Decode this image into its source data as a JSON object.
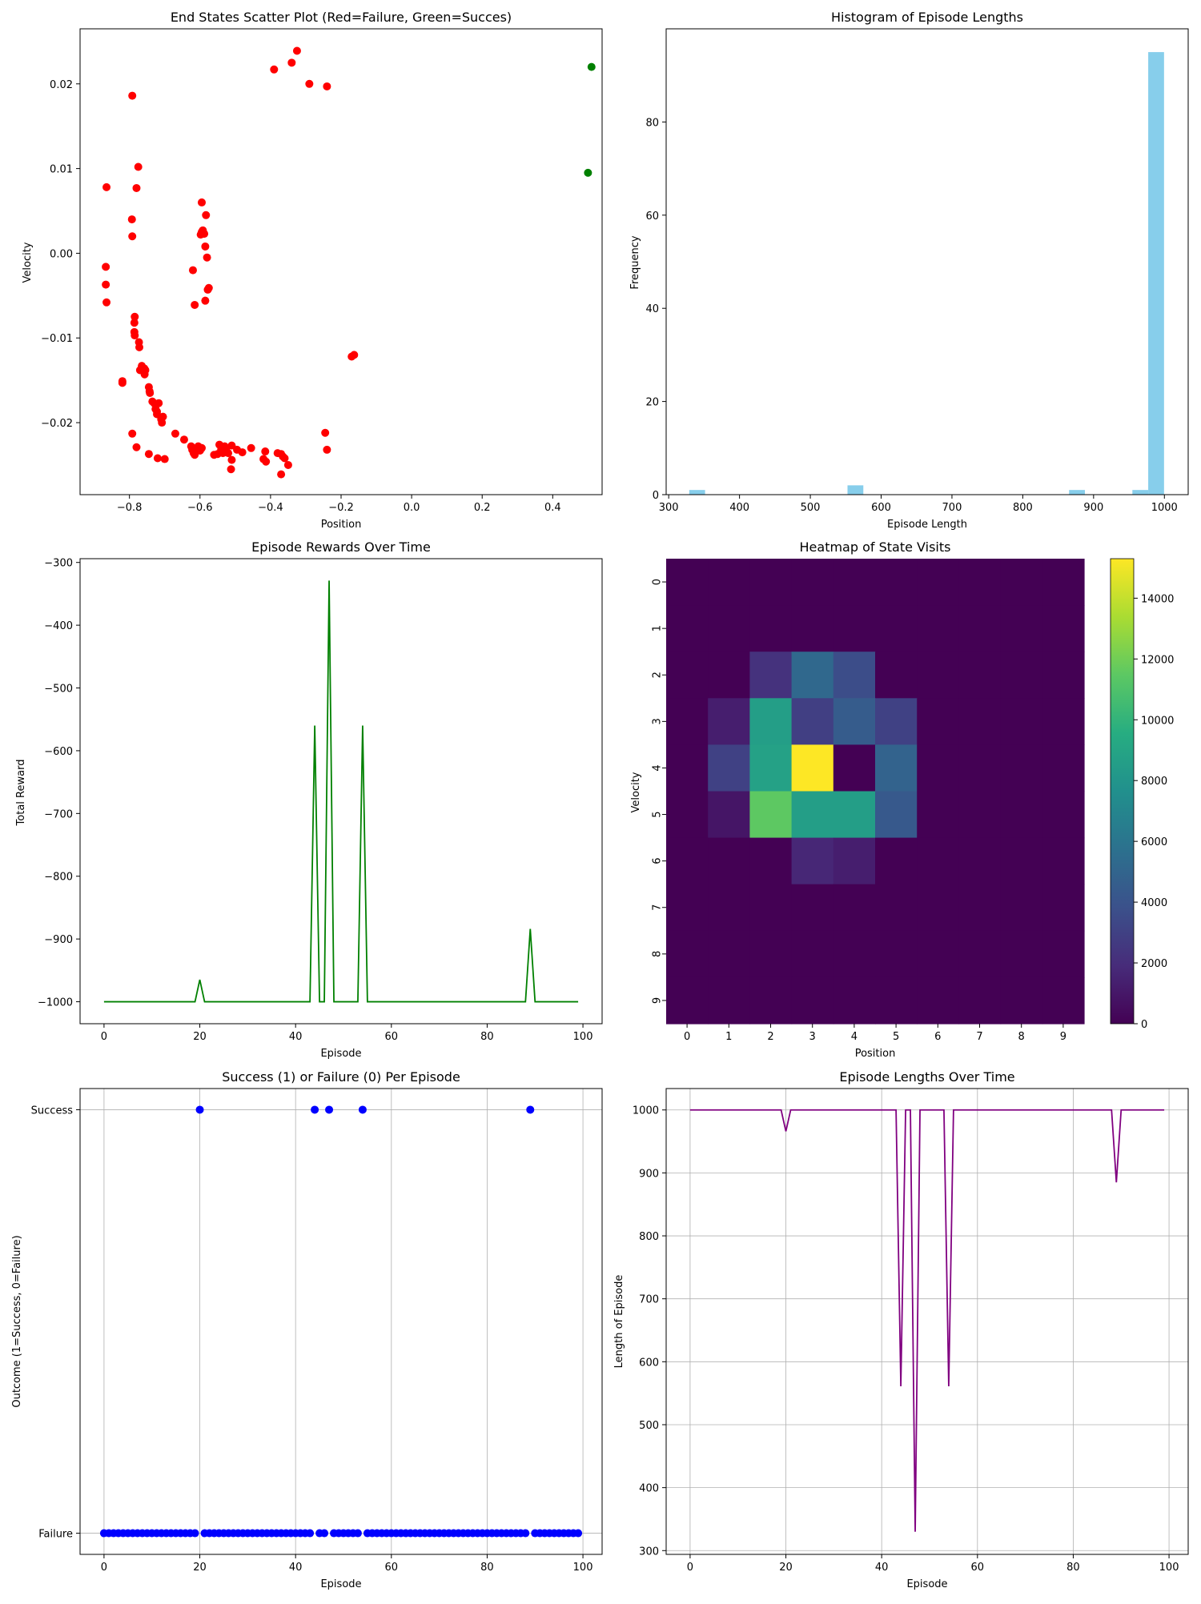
{
  "charts": {
    "scatter": {
      "title": "End States Scatter Plot (Red=Failure, Green=Succes)",
      "xlabel": "Position",
      "ylabel": "Velocity"
    },
    "histogram": {
      "title": "Histogram of Episode Lengths",
      "xlabel": "Episode Length",
      "ylabel": "Frequency"
    },
    "rewards": {
      "title": "Episode Rewards Over Time",
      "xlabel": "Episode",
      "ylabel": "Total Reward"
    },
    "heatmap": {
      "title": "Heatmap of State Visits",
      "xlabel": "Position",
      "ylabel": "Velocity"
    },
    "outcome": {
      "title": "Success (1) or Failure (0) Per Episode",
      "xlabel": "Episode",
      "ylabel": "Outcome (1=Success, 0=Failure)"
    },
    "lengths": {
      "title": "Episode Lengths Over Time",
      "xlabel": "Episode",
      "ylabel": "Length of Episode"
    }
  },
  "chart_data": [
    {
      "id": "scatter",
      "type": "scatter",
      "title": "End States Scatter Plot (Red=Failure, Green=Succes)",
      "xlabel": "Position",
      "ylabel": "Velocity",
      "xlim": [
        -0.94,
        0.54
      ],
      "ylim": [
        -0.0285,
        0.0265
      ],
      "xticks": [
        -0.8,
        -0.6,
        -0.4,
        -0.2,
        0.0,
        0.2,
        0.4
      ],
      "xtick_labels": [
        "−0.8",
        "−0.6",
        "−0.4",
        "−0.2",
        "0.0",
        "0.2",
        "0.4"
      ],
      "yticks": [
        -0.02,
        -0.01,
        0.0,
        0.01,
        0.02
      ],
      "ytick_labels": [
        "−0.02",
        "−0.01",
        "0.00",
        "0.01",
        "0.02"
      ],
      "colors": {
        "failure": "#ff0000",
        "success": "#008000"
      },
      "series": [
        {
          "name": "Failure",
          "points": [
            [
              -0.865,
              0.0078
            ],
            [
              -0.867,
              -0.0016
            ],
            [
              -0.867,
              -0.0037
            ],
            [
              -0.865,
              -0.0058
            ],
            [
              -0.82,
              -0.0151
            ],
            [
              -0.82,
              -0.0153
            ],
            [
              -0.792,
              0.0186
            ],
            [
              -0.793,
              0.004
            ],
            [
              -0.792,
              0.002
            ],
            [
              -0.792,
              -0.0213
            ],
            [
              -0.775,
              0.0102
            ],
            [
              -0.78,
              0.0077
            ],
            [
              -0.785,
              -0.0075
            ],
            [
              -0.786,
              -0.0082
            ],
            [
              -0.786,
              -0.0093
            ],
            [
              -0.785,
              -0.0097
            ],
            [
              -0.773,
              -0.0105
            ],
            [
              -0.772,
              -0.0111
            ],
            [
              -0.78,
              -0.0229
            ],
            [
              -0.765,
              -0.0133
            ],
            [
              -0.77,
              -0.0138
            ],
            [
              -0.758,
              -0.0136
            ],
            [
              -0.755,
              -0.0138
            ],
            [
              -0.757,
              -0.0143
            ],
            [
              -0.745,
              -0.0158
            ],
            [
              -0.743,
              -0.0163
            ],
            [
              -0.742,
              -0.0165
            ],
            [
              -0.735,
              -0.0175
            ],
            [
              -0.73,
              -0.0177
            ],
            [
              -0.726,
              -0.0184
            ],
            [
              -0.722,
              -0.0187
            ],
            [
              -0.717,
              -0.0177
            ],
            [
              -0.722,
              -0.019
            ],
            [
              -0.71,
              -0.0196
            ],
            [
              -0.705,
              -0.0193
            ],
            [
              -0.708,
              -0.02
            ],
            [
              -0.745,
              -0.0237
            ],
            [
              -0.72,
              -0.0242
            ],
            [
              -0.7,
              -0.0243
            ],
            [
              -0.67,
              -0.0213
            ],
            [
              -0.645,
              -0.022
            ],
            [
              -0.625,
              -0.0228
            ],
            [
              -0.622,
              -0.0232
            ],
            [
              -0.618,
              -0.0236
            ],
            [
              -0.615,
              -0.0238
            ],
            [
              -0.61,
              -0.0232
            ],
            [
              -0.605,
              -0.0228
            ],
            [
              -0.6,
              -0.0233
            ],
            [
              -0.595,
              -0.023
            ],
            [
              -0.595,
              0.006
            ],
            [
              -0.598,
              0.0022
            ],
            [
              -0.595,
              0.0025
            ],
            [
              -0.592,
              0.0027
            ],
            [
              -0.588,
              0.0023
            ],
            [
              -0.583,
              0.0045
            ],
            [
              -0.585,
              0.0008
            ],
            [
              -0.58,
              -0.0005
            ],
            [
              -0.62,
              -0.002
            ],
            [
              -0.615,
              -0.0061
            ],
            [
              -0.585,
              -0.0056
            ],
            [
              -0.575,
              -0.0041
            ],
            [
              -0.578,
              -0.0043
            ],
            [
              -0.56,
              -0.0238
            ],
            [
              -0.55,
              -0.0237
            ],
            [
              -0.545,
              -0.0226
            ],
            [
              -0.54,
              -0.0232
            ],
            [
              -0.535,
              -0.0236
            ],
            [
              -0.53,
              -0.0228
            ],
            [
              -0.525,
              -0.0233
            ],
            [
              -0.52,
              -0.0236
            ],
            [
              -0.51,
              -0.0227
            ],
            [
              -0.51,
              -0.0244
            ],
            [
              -0.512,
              -0.0255
            ],
            [
              -0.495,
              -0.0232
            ],
            [
              -0.48,
              -0.0235
            ],
            [
              -0.455,
              -0.023
            ],
            [
              -0.42,
              -0.0243
            ],
            [
              -0.415,
              -0.0234
            ],
            [
              -0.413,
              -0.0246
            ],
            [
              -0.38,
              -0.0236
            ],
            [
              -0.37,
              -0.0237
            ],
            [
              -0.365,
              -0.024
            ],
            [
              -0.36,
              -0.0242
            ],
            [
              -0.35,
              -0.025
            ],
            [
              -0.37,
              -0.0261
            ],
            [
              -0.39,
              0.0217
            ],
            [
              -0.34,
              0.0225
            ],
            [
              -0.325,
              0.0239
            ],
            [
              -0.29,
              0.02
            ],
            [
              -0.24,
              0.0197
            ],
            [
              -0.245,
              -0.0212
            ],
            [
              -0.24,
              -0.0232
            ],
            [
              -0.17,
              -0.0122
            ],
            [
              -0.163,
              -0.012
            ]
          ]
        },
        {
          "name": "Success",
          "points": [
            [
              0.51,
              0.022
            ],
            [
              0.5,
              0.0095
            ]
          ]
        }
      ]
    },
    {
      "id": "histogram",
      "type": "bar",
      "title": "Histogram of Episode Lengths",
      "xlabel": "Episode Length",
      "ylabel": "Frequency",
      "xlim": [
        296.4,
        1033.6
      ],
      "ylim": [
        0,
        100
      ],
      "xticks": [
        300,
        400,
        500,
        600,
        700,
        800,
        900,
        1000
      ],
      "yticks": [
        0,
        20,
        40,
        60,
        80
      ],
      "color": "#87ceeb",
      "bins": [
        {
          "x0": 329,
          "x1": 351.35,
          "count": 1
        },
        {
          "x0": 552.5,
          "x1": 574.85,
          "count": 2
        },
        {
          "x0": 865.4,
          "x1": 887.75,
          "count": 1
        },
        {
          "x0": 954.8,
          "x1": 977.15,
          "count": 1
        },
        {
          "x0": 977.15,
          "x1": 999.5,
          "count": 95
        }
      ]
    },
    {
      "id": "rewards",
      "type": "line",
      "title": "Episode Rewards Over Time",
      "xlabel": "Episode",
      "ylabel": "Total Reward",
      "xlim": [
        -5,
        104
      ],
      "ylim": [
        -1035,
        -294
      ],
      "xticks": [
        0,
        20,
        40,
        60,
        80,
        100
      ],
      "yticks": [
        -1000,
        -900,
        -800,
        -700,
        -600,
        -500,
        -400,
        -300
      ],
      "ytick_labels": [
        "−1000",
        "−900",
        "−800",
        "−700",
        "−600",
        "−500",
        "−400",
        "−300"
      ],
      "color": "#008000",
      "special": {
        "20": -965,
        "44": -560,
        "47": -329,
        "54": -560,
        "89": -884
      },
      "default": -1000,
      "count": 100
    },
    {
      "id": "heatmap",
      "type": "heatmap",
      "title": "Heatmap of State Visits",
      "xlabel": "Position",
      "ylabel": "Velocity",
      "xticks": [
        "0",
        "1",
        "2",
        "3",
        "4",
        "5",
        "6",
        "7",
        "8",
        "9"
      ],
      "yticks": [
        "0",
        "1",
        "2",
        "3",
        "4",
        "5",
        "6",
        "7",
        "8",
        "9"
      ],
      "vmin": 0,
      "vmax": 15300,
      "colorbar_ticks": [
        0,
        2000,
        4000,
        6000,
        8000,
        10000,
        12000,
        14000
      ],
      "values": [
        [
          0,
          0,
          0,
          0,
          0,
          0,
          0,
          0,
          0,
          0
        ],
        [
          0,
          0,
          0,
          0,
          0,
          0,
          0,
          0,
          0,
          0
        ],
        [
          0,
          0,
          2200,
          5200,
          3600,
          0,
          0,
          0,
          0,
          0
        ],
        [
          0,
          1300,
          8600,
          2900,
          4500,
          3000,
          0,
          0,
          0,
          0
        ],
        [
          0,
          3000,
          8800,
          15300,
          0,
          4900,
          0,
          0,
          0,
          0
        ],
        [
          0,
          900,
          11500,
          8600,
          8600,
          4300,
          0,
          0,
          0,
          0
        ],
        [
          0,
          0,
          0,
          1700,
          1300,
          0,
          0,
          0,
          0,
          0
        ],
        [
          0,
          0,
          0,
          0,
          0,
          0,
          0,
          0,
          0,
          0
        ],
        [
          0,
          0,
          0,
          0,
          0,
          0,
          0,
          0,
          0,
          0
        ],
        [
          0,
          0,
          0,
          0,
          0,
          0,
          0,
          0,
          0,
          0
        ]
      ]
    },
    {
      "id": "outcome",
      "type": "scatter",
      "title": "Success (1) or Failure (0) Per Episode",
      "xlabel": "Episode",
      "ylabel": "Outcome (1=Success, 0=Failure)",
      "xlim": [
        -5,
        104
      ],
      "ylim": [
        -0.05,
        1.05
      ],
      "xticks": [
        0,
        20,
        40,
        60,
        80,
        100
      ],
      "ytick_labels": [
        "Failure",
        "Success"
      ],
      "grid": true,
      "color": "#0000ff",
      "success_episodes": [
        20,
        44,
        47,
        54,
        89
      ],
      "count": 100
    },
    {
      "id": "lengths",
      "type": "line",
      "title": "Episode Lengths Over Time",
      "xlabel": "Episode",
      "ylabel": "Length of Episode",
      "xlim": [
        -5,
        104
      ],
      "ylim": [
        294,
        1034
      ],
      "xticks": [
        0,
        20,
        40,
        60,
        80,
        100
      ],
      "yticks": [
        300,
        400,
        500,
        600,
        700,
        800,
        900,
        1000
      ],
      "grid": true,
      "color": "#800080",
      "special": {
        "20": 966,
        "44": 561,
        "47": 330,
        "54": 561,
        "89": 885
      },
      "default": 1000,
      "count": 100
    }
  ]
}
